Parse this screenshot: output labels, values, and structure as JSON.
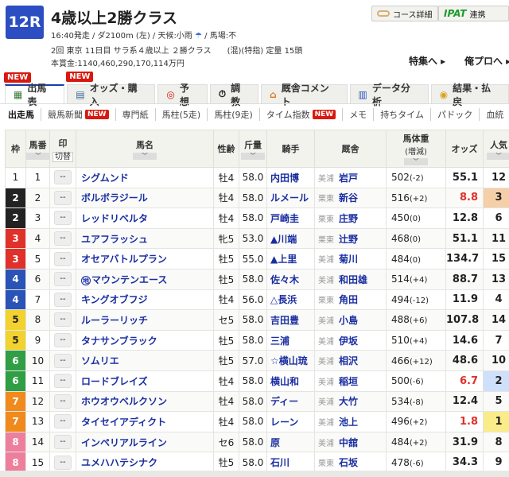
{
  "race": {
    "number": "12R",
    "title": "4歳以上2勝クラス",
    "line1a": "16:40発走 / ダ2100m (左) / 天候:小雨",
    "line1b": "/ 馬場:不",
    "line2": "2回 東京 11日目 サラ系４歳以上 ２勝クラス　　(混)(特指) 定量 15頭",
    "line3": "本賞金:1140,460,290,170,114万円",
    "weather_icon": "umbrella-icon"
  },
  "buttons": {
    "course": "コース詳細",
    "ipat": "IPAT",
    "ipat_suffix": "連携",
    "special": "特集へ ▸",
    "blog": "俺プロへ ▸"
  },
  "tabs": [
    {
      "label": "出馬表",
      "new": "NEW",
      "icon": "table-icon"
    },
    {
      "label": "オッズ・購入",
      "new": "NEW",
      "icon": "odds-icon"
    },
    {
      "label": "予想",
      "icon": "target-icon"
    },
    {
      "label": "調教",
      "icon": "stopwatch-icon"
    },
    {
      "label": "厩舎コメント",
      "icon": "stable-icon"
    },
    {
      "label": "データ分析",
      "icon": "bar-chart-icon"
    },
    {
      "label": "結果・払戻",
      "icon": "coins-icon"
    }
  ],
  "subnav": [
    {
      "label": "出走馬"
    },
    {
      "label": "競馬新聞",
      "new": "NEW"
    },
    {
      "label": "専門紙"
    },
    {
      "label": "馬柱(5走)"
    },
    {
      "label": "馬柱(9走)"
    },
    {
      "label": "タイム指数",
      "new": "NEW"
    },
    {
      "label": "メモ"
    },
    {
      "label": "持ちタイム"
    },
    {
      "label": "パドック"
    },
    {
      "label": "血統"
    }
  ],
  "table": {
    "headers": {
      "waku": "枠",
      "umaban": "馬番",
      "mark": "印",
      "mark_toggle": "切替",
      "name": "馬名",
      "sexage": "性齢",
      "weight": "斤量",
      "jockey": "騎手",
      "stable": "厩舎",
      "body": "馬体重",
      "body_sub": "(増減)",
      "odds": "オッズ",
      "pop": "人気"
    },
    "mark_placeholder": "--",
    "frame_colors": {
      "1": "#ffffff",
      "2": "#222222",
      "3": "#e0302a",
      "4": "#2a53b8",
      "5": "#f2d22e",
      "6": "#2f9e44",
      "7": "#f08a1c",
      "8": "#ee7f9c"
    },
    "rows": [
      {
        "waku": "1",
        "umaban": "1",
        "name": "シグムンド",
        "sexage": "牡4",
        "weight": "58.0",
        "jockey": "内田博",
        "region": "美浦",
        "trainer": "岩戸",
        "body": "502",
        "diff": "(-2)",
        "odds": "55.1",
        "pop": "12"
      },
      {
        "waku": "2",
        "umaban": "2",
        "name": "ボルボラジール",
        "sexage": "牡4",
        "weight": "58.0",
        "jockey": "ルメール",
        "region": "栗東",
        "trainer": "新谷",
        "body": "516",
        "diff": "(+2)",
        "odds": "8.8",
        "pop": "3"
      },
      {
        "waku": "2",
        "umaban": "3",
        "name": "レッドリベルタ",
        "sexage": "牡4",
        "weight": "58.0",
        "jockey": "戸崎圭",
        "region": "栗東",
        "trainer": "庄野",
        "body": "450",
        "diff": "(0)",
        "odds": "12.8",
        "pop": "6"
      },
      {
        "waku": "3",
        "umaban": "4",
        "name": "ユアフラッシュ",
        "sexage": "牝5",
        "weight": "53.0",
        "jockey": "▲川端",
        "region": "栗東",
        "trainer": "辻野",
        "body": "468",
        "diff": "(0)",
        "odds": "51.1",
        "pop": "11"
      },
      {
        "waku": "3",
        "umaban": "5",
        "name": "オセアバトルプラン",
        "sexage": "牡5",
        "weight": "55.0",
        "jockey": "▲上里",
        "region": "美浦",
        "trainer": "菊川",
        "body": "484",
        "diff": "(0)",
        "odds": "134.7",
        "pop": "15"
      },
      {
        "waku": "4",
        "umaban": "6",
        "prefix": "地",
        "name": "マウンテンエース",
        "sexage": "牡5",
        "weight": "58.0",
        "jockey": "佐々木",
        "region": "美浦",
        "trainer": "和田雄",
        "body": "514",
        "diff": "(+4)",
        "odds": "88.7",
        "pop": "13"
      },
      {
        "waku": "4",
        "umaban": "7",
        "name": "キングオブフジ",
        "sexage": "牡4",
        "weight": "56.0",
        "jockey": "△長浜",
        "region": "栗東",
        "trainer": "角田",
        "body": "494",
        "diff": "(-12)",
        "odds": "11.9",
        "pop": "4"
      },
      {
        "waku": "5",
        "umaban": "8",
        "name": "ルーラーリッチ",
        "sexage": "セ5",
        "weight": "58.0",
        "jockey": "吉田豊",
        "region": "美浦",
        "trainer": "小島",
        "body": "488",
        "diff": "(+6)",
        "odds": "107.8",
        "pop": "14"
      },
      {
        "waku": "5",
        "umaban": "9",
        "name": "タナサンブラック",
        "sexage": "牡5",
        "weight": "58.0",
        "jockey": "三浦",
        "region": "美浦",
        "trainer": "伊坂",
        "body": "510",
        "diff": "(+4)",
        "odds": "14.6",
        "pop": "7"
      },
      {
        "waku": "6",
        "umaban": "10",
        "name": "ソムリエ",
        "sexage": "牡5",
        "weight": "57.0",
        "jockey": "☆横山琉",
        "region": "美浦",
        "trainer": "相沢",
        "body": "466",
        "diff": "(+12)",
        "odds": "48.6",
        "pop": "10"
      },
      {
        "waku": "6",
        "umaban": "11",
        "name": "ロードブレイズ",
        "sexage": "牡4",
        "weight": "58.0",
        "jockey": "横山和",
        "region": "美浦",
        "trainer": "稲垣",
        "body": "500",
        "diff": "(-6)",
        "odds": "6.7",
        "pop": "2"
      },
      {
        "waku": "7",
        "umaban": "12",
        "name": "ホウオウベルクソン",
        "sexage": "牡4",
        "weight": "58.0",
        "jockey": "ディー",
        "region": "美浦",
        "trainer": "大竹",
        "body": "534",
        "diff": "(-8)",
        "odds": "12.4",
        "pop": "5"
      },
      {
        "waku": "7",
        "umaban": "13",
        "name": "タイセイアディクト",
        "sexage": "牡4",
        "weight": "58.0",
        "jockey": "レーン",
        "region": "美浦",
        "trainer": "池上",
        "body": "496",
        "diff": "(+2)",
        "odds": "1.8",
        "pop": "1"
      },
      {
        "waku": "8",
        "umaban": "14",
        "name": "インペリアルライン",
        "sexage": "セ6",
        "weight": "58.0",
        "jockey": "原",
        "region": "美浦",
        "trainer": "中舘",
        "body": "484",
        "diff": "(+2)",
        "odds": "31.9",
        "pop": "8"
      },
      {
        "waku": "8",
        "umaban": "15",
        "name": "ユメハハテシナク",
        "sexage": "牡5",
        "weight": "58.0",
        "jockey": "石川",
        "region": "栗東",
        "trainer": "石坂",
        "body": "478",
        "diff": "(-6)",
        "odds": "34.3",
        "pop": "9"
      }
    ],
    "pop_colors": {
      "1": "#fbec8a",
      "2": "#cfe0fb",
      "3": "#f5cfa8"
    },
    "odds_highlight_color": "#e0302a"
  }
}
